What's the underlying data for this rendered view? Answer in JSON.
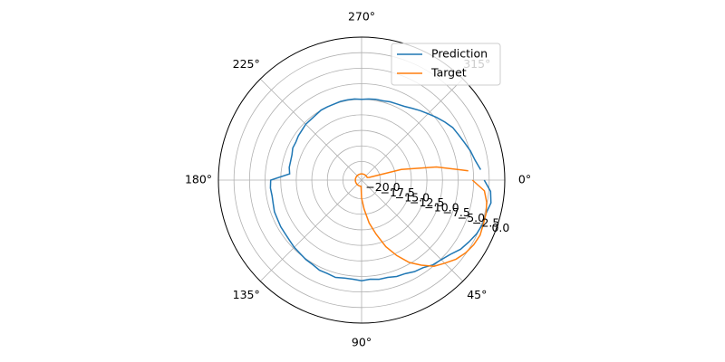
{
  "chart_data": {
    "type": "polar-line",
    "theta_direction": "clockwise",
    "x": [
      0,
      5,
      10,
      15,
      20,
      25,
      30,
      35,
      40,
      45,
      50,
      55,
      60,
      65,
      70,
      75,
      80,
      85,
      90,
      95,
      100,
      105,
      110,
      115,
      120,
      125,
      130,
      135,
      140,
      145,
      150,
      155,
      160,
      165,
      170,
      175,
      180,
      185,
      190,
      195,
      200,
      205,
      210,
      215,
      220,
      225,
      230,
      235,
      240,
      245,
      250,
      255,
      260,
      265,
      270,
      275,
      280,
      285,
      290,
      295,
      300,
      305,
      310,
      315,
      320,
      325,
      330,
      335,
      340,
      345,
      350,
      355
    ],
    "series": [
      {
        "name": "Prediction",
        "color": "#1f77b4",
        "values": [
          -3.3,
          -2.2,
          -1.9,
          -2.3,
          -2.3,
          -2.6,
          -3.1,
          -3.6,
          -4.4,
          -4.9,
          -5.2,
          -5.8,
          -6.0,
          -6.4,
          -6.5,
          -6.8,
          -6.8,
          -7.0,
          -6.8,
          -7.0,
          -7.0,
          -6.8,
          -7.0,
          -7.0,
          -7.3,
          -7.4,
          -7.6,
          -7.7,
          -7.9,
          -8.0,
          -8.0,
          -8.1,
          -8.1,
          -8.3,
          -8.4,
          -8.3,
          -8.4,
          -11.4,
          -11.2,
          -11.2,
          -11.1,
          -10.8,
          -10.8,
          -10.6,
          -10.5,
          -10.3,
          -10.3,
          -10.2,
          -10.0,
          -10.0,
          -10.0,
          -9.9,
          -9.9,
          -9.9,
          -10.0,
          -9.9,
          -9.8,
          -9.8,
          -9.6,
          -9.5,
          -9.3,
          -8.9,
          -8.4,
          -7.9,
          -7.3,
          -6.7,
          -6.1,
          -5.8,
          -5.4,
          -4.9,
          -4.5,
          -3.8
        ]
      },
      {
        "name": "Target",
        "color": "#ff7f0e",
        "values": [
          -5.2,
          -3.2,
          -2.6,
          -2.3,
          -2.2,
          -2.0,
          -2.2,
          -2.6,
          -3.2,
          -4.1,
          -4.9,
          -6.3,
          -7.7,
          -9.6,
          -11.6,
          -14.0,
          -16.0,
          -18.3,
          -20.1,
          -22.0,
          -22.0,
          -22.0,
          -22.0,
          -22.0,
          -22.0,
          -22.0,
          -22.0,
          -22.0,
          -22.0,
          -22.0,
          -22.0,
          -22.0,
          -22.0,
          -22.0,
          -22.0,
          -22.0,
          -22.0,
          -22.0,
          -22.0,
          -22.0,
          -22.0,
          -22.0,
          -22.0,
          -22.0,
          -22.0,
          -22.0,
          -22.0,
          -22.0,
          -22.0,
          -22.0,
          -22.0,
          -22.0,
          -22.0,
          -22.0,
          -22.0,
          -22.0,
          -22.0,
          -22.0,
          -22.0,
          -22.0,
          -22.0,
          -22.0,
          -22.0,
          -22.0,
          -22.0,
          -22.0,
          -22.0,
          -22.0,
          -21.7,
          -16.4,
          -10.8,
          -5.8
        ]
      }
    ],
    "xticks": [
      {
        "value": 0,
        "label": "0°"
      },
      {
        "value": 45,
        "label": "45°"
      },
      {
        "value": 90,
        "label": "90°"
      },
      {
        "value": 135,
        "label": "135°"
      },
      {
        "value": 180,
        "label": "180°"
      },
      {
        "value": 225,
        "label": "225°"
      },
      {
        "value": 270,
        "label": "270°"
      },
      {
        "value": 315,
        "label": "315°"
      }
    ],
    "ylim": [
      -23,
      0
    ],
    "yticks": [
      {
        "value": -20,
        "label": "−20.0"
      },
      {
        "value": -17.5,
        "label": "−17.5"
      },
      {
        "value": -15,
        "label": "−15.0"
      },
      {
        "value": -12.5,
        "label": "−12.5"
      },
      {
        "value": -10,
        "label": "−10.0"
      },
      {
        "value": -7.5,
        "label": "−7.5"
      },
      {
        "value": -5,
        "label": "−5.0"
      },
      {
        "value": -2.5,
        "label": "−2.5"
      },
      {
        "value": 0,
        "label": "0.0"
      }
    ],
    "grid": true,
    "legend": "upper right"
  }
}
